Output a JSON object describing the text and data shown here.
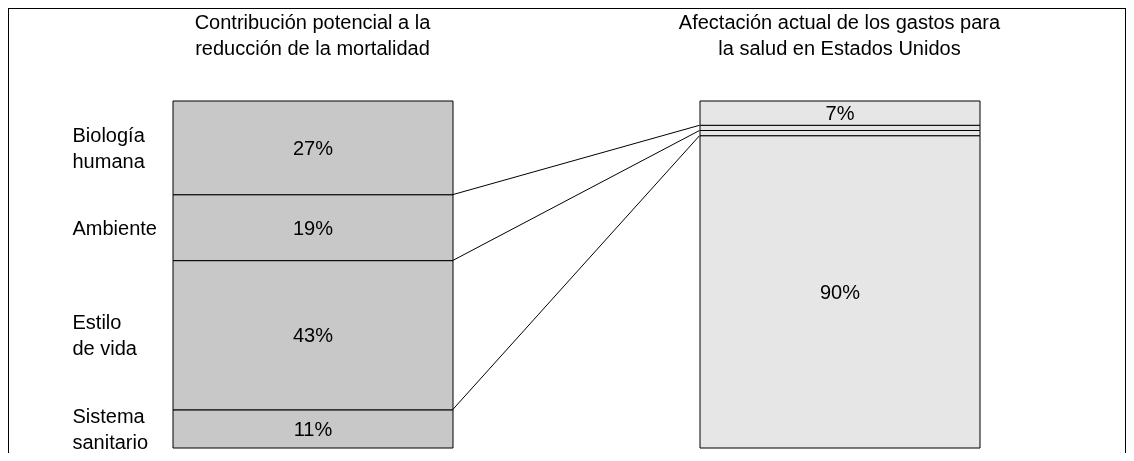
{
  "chart_data": {
    "type": "bar",
    "stacked": true,
    "categories": [
      "Contribución potencial a la reducción de la mortalidad",
      "Afectación actual de los gastos para la salud en Estados Unidos"
    ],
    "series": [
      {
        "name": "Sistema sanitario",
        "colors": [
          "#c8c8c8",
          "#e6e6e6"
        ],
        "values": [
          11,
          90
        ],
        "value_labels": [
          "11%",
          "90%"
        ]
      },
      {
        "name": "Estilo de vida",
        "colors": [
          "#c8c8c8",
          "#e6e6e6"
        ],
        "values": [
          43,
          1.5
        ],
        "value_labels": [
          "43%",
          null
        ]
      },
      {
        "name": "Ambiente",
        "colors": [
          "#c8c8c8",
          "#e6e6e6"
        ],
        "values": [
          19,
          1.5
        ],
        "value_labels": [
          "19%",
          null
        ]
      },
      {
        "name": "Biología humana",
        "colors": [
          "#c8c8c8",
          "#e6e6e6"
        ],
        "values": [
          27,
          7
        ],
        "value_labels": [
          "27%",
          "7%"
        ]
      }
    ],
    "legend": "left"
  }
}
